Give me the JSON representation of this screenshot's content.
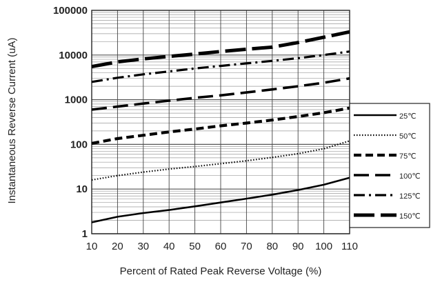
{
  "chart_data": {
    "type": "line",
    "title": "",
    "xlabel": "Percent of  Rated Peak Reverse Voltage (%)",
    "ylabel": "Instantaneous Reverse Current (uA)",
    "x": [
      10,
      20,
      30,
      40,
      50,
      60,
      70,
      80,
      90,
      100,
      110
    ],
    "x_ticks": [
      "10",
      "20",
      "30",
      "40",
      "50",
      "60",
      "70",
      "80",
      "90",
      "100",
      "110"
    ],
    "xlim": [
      10,
      110
    ],
    "y_scale": "log",
    "ylim": [
      1,
      100000
    ],
    "y_ticks": [
      {
        "value": 1,
        "label": "1"
      },
      {
        "value": 10,
        "label": "10"
      },
      {
        "value": 100,
        "label": "100"
      },
      {
        "value": 1000,
        "label": "1000"
      },
      {
        "value": 10000,
        "label": "10000"
      },
      {
        "value": 100000,
        "label": "100000"
      }
    ],
    "grid": true,
    "legend_position": "right",
    "series": [
      {
        "name": "25℃",
        "style": "solid",
        "values": [
          1.8,
          2.4,
          2.9,
          3.4,
          4.1,
          5.0,
          6.1,
          7.5,
          9.5,
          12.5,
          18
        ]
      },
      {
        "name": "50℃",
        "style": "dotted",
        "values": [
          16,
          20,
          24,
          28,
          32,
          37,
          43,
          51,
          62,
          80,
          120
        ]
      },
      {
        "name": "75℃",
        "style": "dash",
        "values": [
          105,
          135,
          160,
          190,
          220,
          260,
          300,
          350,
          420,
          510,
          650
        ]
      },
      {
        "name": "100℃",
        "style": "longdash",
        "values": [
          600,
          700,
          820,
          950,
          1100,
          1250,
          1450,
          1700,
          2000,
          2400,
          3000
        ]
      },
      {
        "name": "125℃",
        "style": "dashdot",
        "values": [
          2500,
          3100,
          3700,
          4300,
          5000,
          5700,
          6500,
          7400,
          8500,
          10000,
          12000
        ]
      },
      {
        "name": "150℃",
        "style": "heavy",
        "values": [
          5500,
          7000,
          8200,
          9300,
          10500,
          12000,
          13500,
          15000,
          19000,
          25000,
          33000
        ]
      }
    ]
  }
}
